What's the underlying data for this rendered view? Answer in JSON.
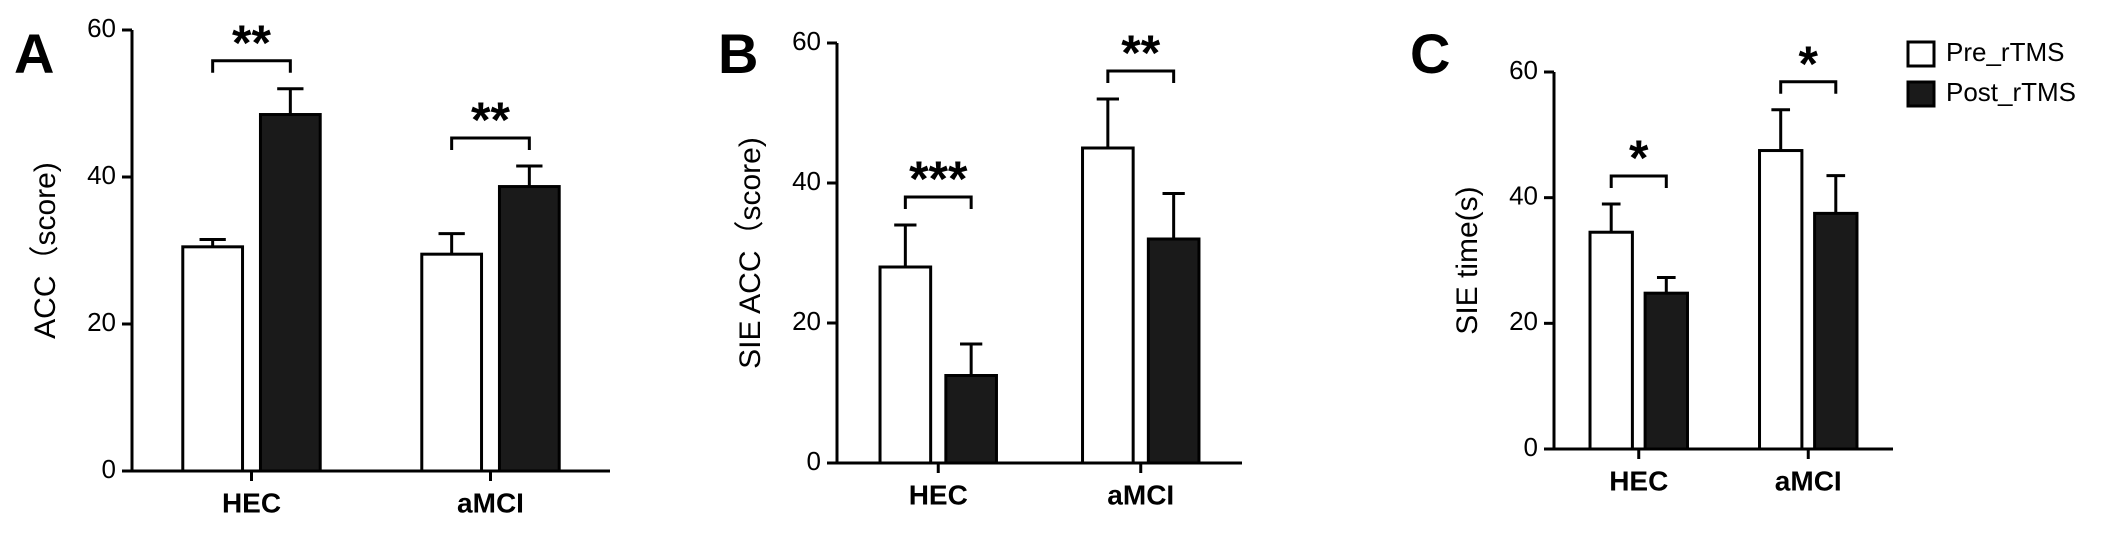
{
  "chart_data": [
    {
      "type": "bar",
      "panel_label": "A",
      "y_label": "ACC（score)",
      "categories": [
        "HEC",
        "aMCI"
      ],
      "significance": [
        "**",
        "**"
      ],
      "series": [
        {
          "color": "#ffffff",
          "values": [
            30.5,
            29.5
          ],
          "errors": [
            1,
            2.8
          ]
        },
        {
          "color": "#1a1a1a",
          "values": [
            48.5,
            38.7
          ],
          "errors": [
            3.5,
            2.8
          ]
        }
      ],
      "ylim": [
        0,
        60
      ],
      "yticks": [
        0,
        20,
        40,
        60
      ]
    },
    {
      "type": "bar",
      "panel_label": "B",
      "y_label": "SIE ACC（score)",
      "categories": [
        "HEC",
        "aMCI"
      ],
      "significance": [
        "***",
        "**"
      ],
      "series": [
        {
          "color": "#ffffff",
          "values": [
            28,
            45
          ],
          "errors": [
            6,
            7
          ]
        },
        {
          "color": "#1a1a1a",
          "values": [
            12.5,
            32
          ],
          "errors": [
            4.5,
            6.5
          ]
        }
      ],
      "ylim": [
        0,
        60
      ],
      "yticks": [
        0,
        20,
        40,
        60
      ]
    },
    {
      "type": "bar",
      "panel_label": "C",
      "y_label": "SIE time(s)",
      "categories": [
        "HEC",
        "aMCI"
      ],
      "significance": [
        "*",
        "*"
      ],
      "series": [
        {
          "name": "Pre_rTMS",
          "color": "#ffffff",
          "values": [
            34.5,
            47.5
          ],
          "errors": [
            4.5,
            6.5
          ]
        },
        {
          "name": "Post_rTMS",
          "color": "#1a1a1a",
          "values": [
            24.8,
            37.5
          ],
          "errors": [
            2.5,
            6
          ]
        }
      ],
      "ylim": [
        0,
        60
      ],
      "yticks": [
        0,
        20,
        40,
        60
      ],
      "legend": "top-right"
    }
  ]
}
